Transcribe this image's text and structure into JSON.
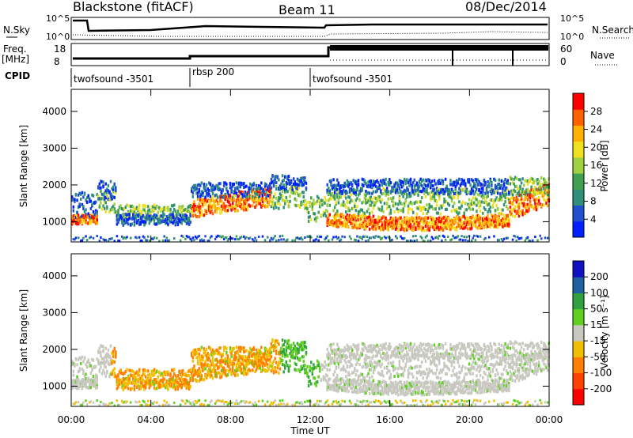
{
  "header": {
    "station": "Blackstone (fitACF)",
    "beam": "Beam 11",
    "date": "08/Dec/2014"
  },
  "top_panels": {
    "nsky_label": "N.Sky",
    "nsky_ticks": [
      "10^5",
      "10^0"
    ],
    "nsky_right_ticks": [
      "10^5",
      "10^0"
    ],
    "nsearch_label": "N.Search",
    "freq_label": "Freq.",
    "freq_unit": "[MHz]",
    "freq_ticks": [
      "18",
      "8"
    ],
    "nave_ticks": [
      "60",
      "0"
    ],
    "nave_label": "Nave",
    "cpid_label": "CPID",
    "cpid_segments": [
      {
        "name": "twofsound -3501",
        "start_hr": 0,
        "end_hr": 6
      },
      {
        "name": "rbsp 200",
        "start_hr": 6,
        "end_hr": 12
      },
      {
        "name": "twofsound -3501",
        "start_hr": 12,
        "end_hr": 24
      }
    ]
  },
  "chart_data": [
    {
      "type": "heatmap",
      "name": "power",
      "ylabel": "Slant Range [km]",
      "xlabel": "Time UT",
      "xlim": [
        0,
        24
      ],
      "ylim": [
        450,
        4600
      ],
      "x_ticks": [
        "00:00",
        "04:00",
        "08:00",
        "12:00",
        "16:00",
        "20:00",
        "00:00"
      ],
      "y_ticks": [
        1000,
        2000,
        3000,
        4000
      ],
      "colorbar_label": "Power [dB]",
      "colorbar_ticks": [
        4,
        8,
        12,
        16,
        20,
        24,
        28
      ],
      "colorbar_range": [
        0,
        32
      ],
      "colors": [
        "#0020ff",
        "#2050d0",
        "#2f8f7a",
        "#3fa050",
        "#a0d040",
        "#f0e020",
        "#ffb000",
        "#ff6000",
        "#ff0000"
      ]
    },
    {
      "type": "heatmap",
      "name": "velocity",
      "ylabel": "Slant Range [km]",
      "xlabel": "Time UT",
      "xlim": [
        0,
        24
      ],
      "ylim": [
        450,
        4600
      ],
      "x_ticks": [
        "00:00",
        "04:00",
        "08:00",
        "12:00",
        "16:00",
        "20:00",
        "00:00"
      ],
      "y_ticks": [
        1000,
        2000,
        3000,
        4000
      ],
      "colorbar_label": "Velocity [m s⁻¹]",
      "colorbar_ticks": [
        "200",
        "100",
        "50",
        "15",
        "-15",
        "-50",
        "-100",
        "-200"
      ],
      "colors": [
        "#1010c0",
        "#2060a0",
        "#30a040",
        "#60d020",
        "#c8c8c0",
        "#f0c000",
        "#ff8000",
        "#ff4000",
        "#ff0000"
      ]
    }
  ]
}
